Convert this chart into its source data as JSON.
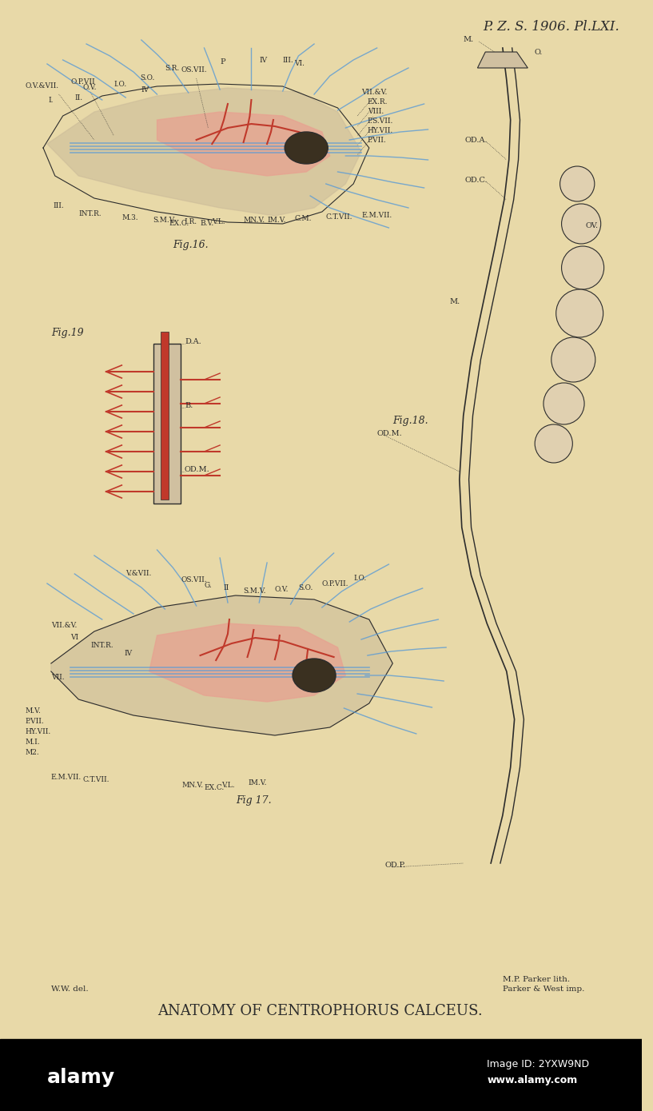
{
  "bg_color": "#e8d9a8",
  "title": "ANATOMY OF CENTROPHORUS CALCEUS.",
  "header": "P. Z. S. 1906. Pl.LXI.",
  "fig16_label": "Fig.16.",
  "fig17_label": "Fig 17.",
  "fig18_label": "Fig.18.",
  "fig19_label": "Fig.19",
  "footer_left": "W.W. del.",
  "footer_right1": "M.P. Parker lith.",
  "footer_right2": "Parker & West imp.",
  "red_color": "#c0392b",
  "blue_color": "#5b9bd5",
  "dark_color": "#2c2c2c",
  "salmon_color": "#e8a090",
  "head_fill": "#c8b898",
  "egg_fill": "#e0d0b0",
  "tube_fill": "#d0c0a0"
}
